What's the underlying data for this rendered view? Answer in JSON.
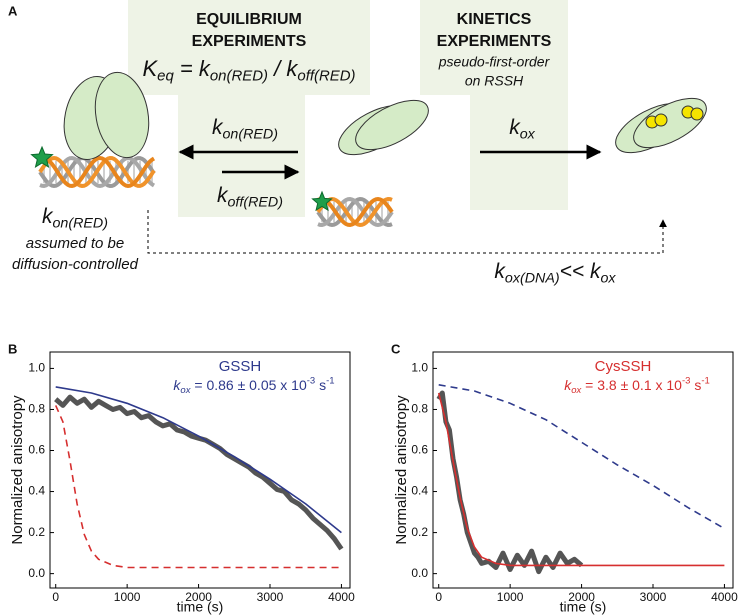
{
  "panel_a": {
    "label": "A",
    "equilibrium_title": [
      "EQUILIBRIUM",
      "EXPERIMENTS"
    ],
    "keq": [
      {
        "text": "K"
      },
      {
        "text": "eq",
        "script": "sub"
      },
      {
        "text": " = k"
      },
      {
        "text": "on(RED)",
        "script": "sub"
      },
      {
        "text": " / k"
      },
      {
        "text": "off(RED)",
        "script": "sub"
      }
    ],
    "kon": [
      {
        "text": "k"
      },
      {
        "text": "on(RED)",
        "script": "sub"
      }
    ],
    "koff": [
      {
        "text": "k"
      },
      {
        "text": "off(RED)",
        "script": "sub"
      }
    ],
    "kinetics_title": [
      "KINETICS",
      "EXPERIMENTS"
    ],
    "kinetics_subtitle": [
      "pseudo-first-order",
      "on RSSH"
    ],
    "kox": [
      {
        "text": "k"
      },
      {
        "text": "ox",
        "script": "sub"
      }
    ],
    "kon_note": [
      {
        "text": "k"
      },
      {
        "text": "on(RED)",
        "script": "sub"
      }
    ],
    "kon_note_lines": [
      "assumed to be",
      "diffusion-controlled"
    ],
    "kox_dna": [
      {
        "text": "k"
      },
      {
        "text": "ox(DNA)",
        "script": "sub"
      },
      {
        "text": "<< k"
      },
      {
        "text": "ox",
        "script": "sub"
      }
    ]
  },
  "chart_data": [
    {
      "type": "line",
      "panel_label": "B",
      "ylabel": "Normalized anisotropy",
      "xlabel": "time (s)",
      "xlim": [
        -80,
        4120
      ],
      "ylim": [
        -0.07,
        1.08
      ],
      "xticks": [
        0,
        1000,
        2000,
        3000,
        4000
      ],
      "yticks": [
        {
          "value": 0,
          "label": "0.0"
        },
        0.2,
        0.4,
        0.6,
        0.8,
        {
          "value": 1,
          "label": "1.0"
        }
      ],
      "annotation_title": "GSSH",
      "annotation_color": "#2e3a8c",
      "annotation": [
        {
          "text": "k",
          "italic": true
        },
        {
          "text": "ox",
          "script": "sub",
          "italic": true
        },
        {
          "text": " = 0.86 ± 0.05 x 10"
        },
        {
          "text": "-3",
          "script": "sup"
        },
        {
          "text": " s"
        },
        {
          "text": "-1",
          "script": "sup"
        }
      ],
      "series": [
        {
          "color": "#555555",
          "linestyle": "bold",
          "x": [
            0,
            100,
            200,
            300,
            400,
            500,
            600,
            700,
            800,
            900,
            1000,
            1100,
            1200,
            1300,
            1400,
            1500,
            1600,
            1700,
            1800,
            1900,
            2000,
            2100,
            2200,
            2300,
            2400,
            2500,
            2600,
            2700,
            2800,
            2900,
            3000,
            3100,
            3200,
            3300,
            3400,
            3500,
            3600,
            3700,
            3800,
            3900,
            4000
          ],
          "values": [
            0.85,
            0.82,
            0.86,
            0.83,
            0.85,
            0.81,
            0.84,
            0.82,
            0.8,
            0.81,
            0.78,
            0.79,
            0.76,
            0.77,
            0.74,
            0.72,
            0.73,
            0.7,
            0.69,
            0.67,
            0.66,
            0.65,
            0.63,
            0.61,
            0.58,
            0.56,
            0.54,
            0.52,
            0.49,
            0.47,
            0.44,
            0.41,
            0.4,
            0.36,
            0.34,
            0.31,
            0.27,
            0.24,
            0.21,
            0.17,
            0.12
          ]
        },
        {
          "color": "#2e3a8c",
          "linestyle": "solid",
          "x": [
            0,
            500,
            1000,
            1500,
            2000,
            2500,
            3000,
            3500,
            4000
          ],
          "values": [
            0.91,
            0.88,
            0.83,
            0.76,
            0.67,
            0.57,
            0.46,
            0.34,
            0.2
          ]
        },
        {
          "color": "#d62f2f",
          "linestyle": "dashed",
          "x": [
            0,
            100,
            200,
            300,
            400,
            500,
            600,
            800,
            1000,
            2000,
            4000
          ],
          "values": [
            0.82,
            0.74,
            0.55,
            0.34,
            0.19,
            0.11,
            0.07,
            0.04,
            0.03,
            0.03,
            0.03
          ]
        }
      ]
    },
    {
      "type": "line",
      "panel_label": "C",
      "ylabel": "Normalized anisotropy",
      "xlabel": "time (s)",
      "xlim": [
        -80,
        4120
      ],
      "ylim": [
        -0.07,
        1.08
      ],
      "xticks": [
        0,
        1000,
        2000,
        3000,
        4000
      ],
      "yticks": [
        {
          "value": 0,
          "label": "0.0"
        },
        0.2,
        0.4,
        0.6,
        0.8,
        {
          "value": 1,
          "label": "1.0"
        }
      ],
      "annotation_title": "CysSSH",
      "annotation_color": "#d62f2f",
      "annotation": [
        {
          "text": "k",
          "italic": true
        },
        {
          "text": "ox",
          "script": "sub",
          "italic": true
        },
        {
          "text": " = 3.8 ± 0.1 x 10"
        },
        {
          "text": "-3",
          "script": "sup"
        },
        {
          "text": " s"
        },
        {
          "text": "-1",
          "script": "sup"
        }
      ],
      "series": [
        {
          "color": "#555555",
          "linestyle": "bold",
          "x": [
            0,
            50,
            100,
            150,
            200,
            250,
            300,
            350,
            400,
            450,
            500,
            550,
            600,
            700,
            800,
            900,
            1000,
            1100,
            1200,
            1300,
            1400,
            1500,
            1600,
            1700,
            1800,
            1900,
            2000
          ],
          "values": [
            0.85,
            0.88,
            0.74,
            0.7,
            0.56,
            0.47,
            0.36,
            0.29,
            0.2,
            0.15,
            0.1,
            0.08,
            0.05,
            0.06,
            0.03,
            0.1,
            0.02,
            0.09,
            0.04,
            0.11,
            0.01,
            0.08,
            0.03,
            0.1,
            0.05,
            0.07,
            0.04
          ]
        },
        {
          "color": "#d62f2f",
          "linestyle": "solid",
          "x": [
            0,
            100,
            200,
            300,
            400,
            500,
            600,
            800,
            1000,
            2000,
            4000
          ],
          "values": [
            0.88,
            0.74,
            0.55,
            0.37,
            0.22,
            0.13,
            0.08,
            0.05,
            0.04,
            0.04,
            0.04
          ]
        },
        {
          "color": "#2e3a8c",
          "linestyle": "dashed",
          "x": [
            0,
            500,
            1000,
            1500,
            2000,
            2500,
            3000,
            3500,
            4000
          ],
          "values": [
            0.92,
            0.89,
            0.83,
            0.75,
            0.64,
            0.53,
            0.43,
            0.32,
            0.22
          ]
        }
      ]
    }
  ]
}
